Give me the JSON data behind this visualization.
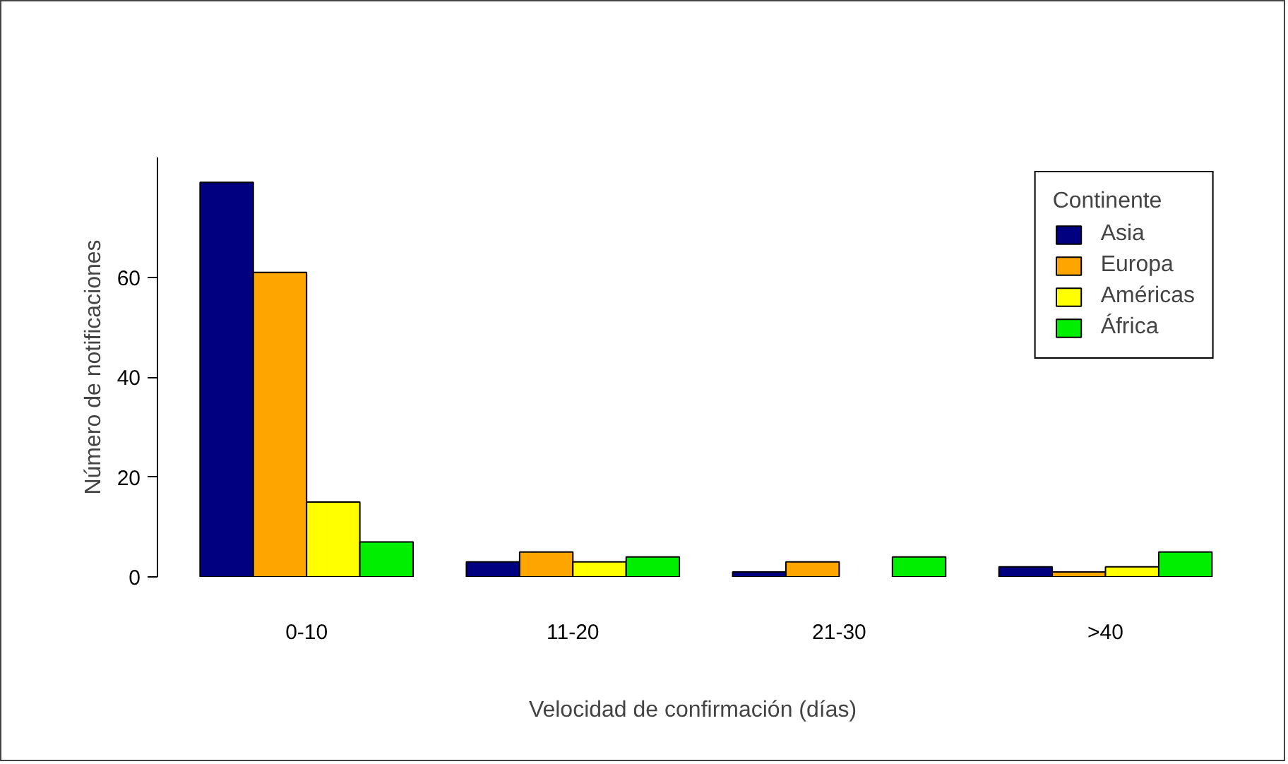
{
  "chart_data": {
    "type": "bar",
    "xlabel": "Velocidad de confirmación (días)",
    "ylabel": "Número de notificaciones",
    "legend_title": "Continente",
    "categories": [
      "0-10",
      "11-20",
      "21-30",
      ">40"
    ],
    "series": [
      {
        "name": "Asia",
        "color": "#000080",
        "values": [
          79,
          3,
          1,
          2
        ]
      },
      {
        "name": "Europa",
        "color": "#ffa500",
        "values": [
          61,
          5,
          3,
          1
        ]
      },
      {
        "name": "Américas",
        "color": "#ffff00",
        "values": [
          15,
          3,
          null,
          2
        ]
      },
      {
        "name": "África",
        "color": "#00ee00",
        "values": [
          7,
          4,
          4,
          5
        ]
      }
    ],
    "ylim": [
      0,
      84
    ],
    "yticks": [
      0,
      20,
      40,
      60
    ],
    "grid": false,
    "legend": "top right"
  }
}
